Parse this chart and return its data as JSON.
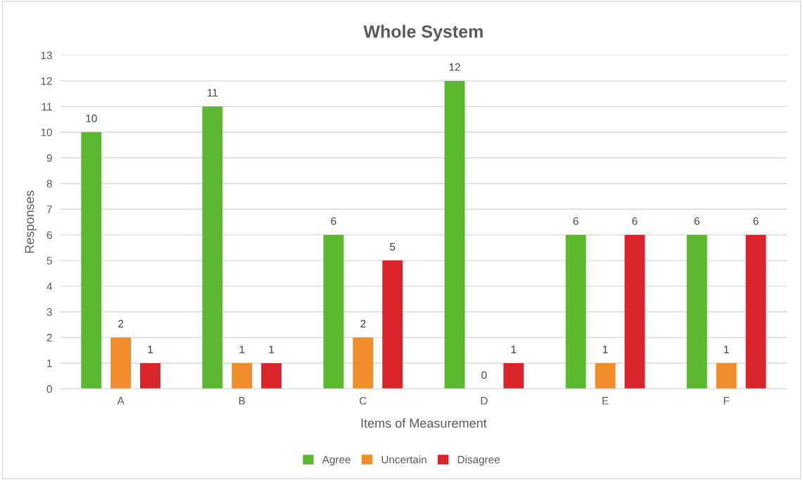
{
  "chart_data": {
    "type": "bar",
    "title": "Whole System",
    "xlabel": "Items of Measurement",
    "ylabel": "Responses",
    "categories": [
      "A",
      "B",
      "C",
      "D",
      "E",
      "F"
    ],
    "series": [
      {
        "name": "Agree",
        "color": "#5cb82e",
        "values": [
          10,
          11,
          6,
          12,
          6,
          6
        ]
      },
      {
        "name": "Uncertain",
        "color": "#f08c2a",
        "values": [
          2,
          1,
          2,
          0,
          1,
          1
        ]
      },
      {
        "name": "Disagree",
        "color": "#d9252a",
        "values": [
          1,
          1,
          5,
          1,
          6,
          6
        ]
      }
    ],
    "ylim": [
      0,
      13
    ],
    "yticks": [
      0,
      1,
      2,
      3,
      4,
      5,
      6,
      7,
      8,
      9,
      10,
      11,
      12,
      13
    ],
    "grid": "y",
    "legend": "bottom",
    "data_labels": true
  }
}
